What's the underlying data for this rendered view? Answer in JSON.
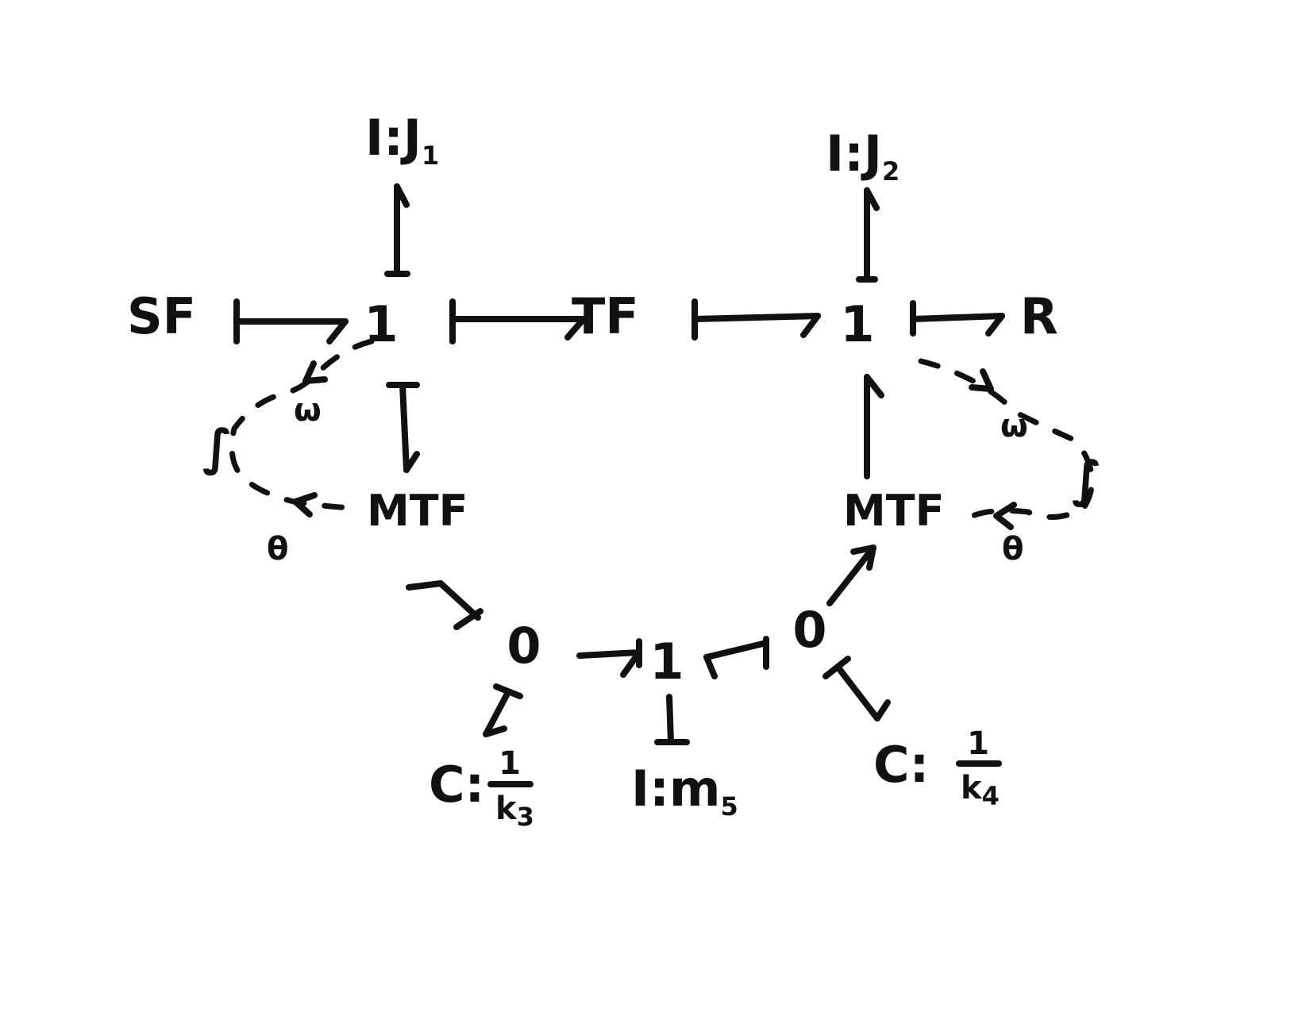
{
  "nodes": {
    "sf": "SF",
    "tf": "TF",
    "r": "R",
    "junction_left": "1",
    "junction_right": "1",
    "junction_bottom": "1",
    "zero_left": "0",
    "zero_right": "0",
    "mtf_left": "MTF",
    "mtf_right": "MTF",
    "i_j1": {
      "prefix": "I:",
      "symbol": "J",
      "sub": "1"
    },
    "i_j2": {
      "prefix": "I:",
      "symbol": "J",
      "sub": "2"
    },
    "i_m5": {
      "prefix": "I:",
      "symbol": "m",
      "sub": "5"
    },
    "c_k3": {
      "prefix": "C:",
      "num": "1",
      "den": "k",
      "sub": "3"
    },
    "c_k4": {
      "prefix": "C:",
      "num": "1",
      "den": "k",
      "sub": "4"
    }
  },
  "signals": {
    "omega_left": "ω",
    "omega_right": "ω",
    "theta_left": "θ",
    "theta_right": "θ",
    "integral_left": "∫",
    "integral_right": "∫"
  }
}
